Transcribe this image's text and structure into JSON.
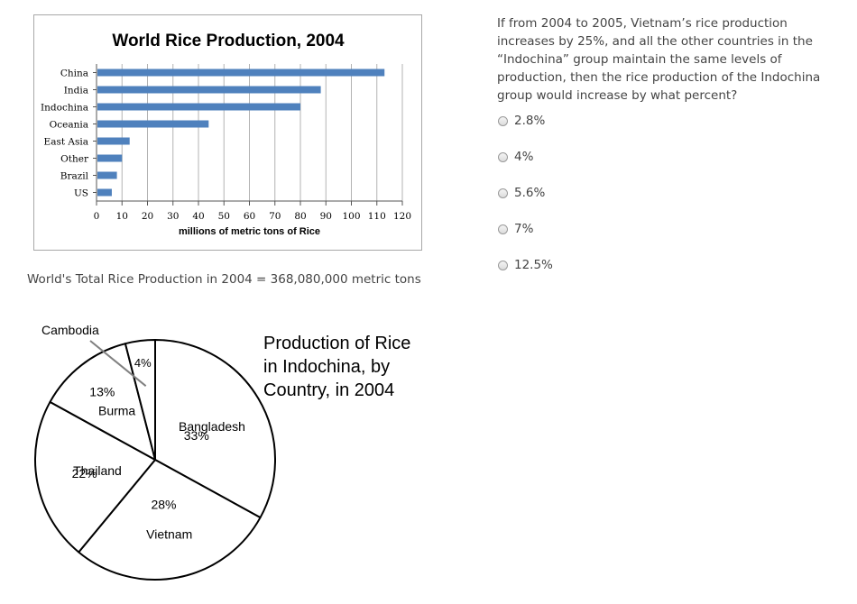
{
  "chart_data": [
    {
      "type": "bar",
      "orientation": "horizontal",
      "title": "World Rice Production, 2004",
      "categories": [
        "China",
        "India",
        "Indochina",
        "Oceania",
        "East Asia",
        "Other",
        "Brazil",
        "US"
      ],
      "values": [
        113,
        88,
        80,
        44,
        13,
        10,
        8,
        6
      ],
      "xlabel": "millions  of metric tons of Rice",
      "xlim": [
        0,
        120
      ],
      "xticks": [
        "0",
        "10",
        "20",
        "30",
        "40",
        "50",
        "60",
        "70",
        "80",
        "90",
        "100",
        "110",
        "120"
      ],
      "grid": "vertical",
      "bar_color": "#4f81bd"
    },
    {
      "type": "pie",
      "title": "Production of Rice in Indochina, by Country, in 2004",
      "slices": [
        {
          "label": "Bangladesh",
          "percent_label": "33%",
          "value": 33
        },
        {
          "label": "Vietnam",
          "percent_label": "28%",
          "value": 28
        },
        {
          "label": "Thailand",
          "percent_label": "22%",
          "value": 22
        },
        {
          "label": "Burma",
          "percent_label": "13%",
          "value": 13
        },
        {
          "label": "Cambodia",
          "percent_label": "4%",
          "value": 4
        }
      ],
      "fill": "#ffffff",
      "stroke": "#000000"
    }
  ],
  "total_text": "World's Total Rice Production in 2004 = 368,080,000 metric tons",
  "question": "If from 2004 to 2005, Vietnam’s rice production increases by 25%, and all the other countries in the “Indochina” group maintain the same levels of production, then the rice production of the Indochina group would increase by what percent?",
  "options": [
    "2.8%",
    "4%",
    "5.6%",
    "7%",
    "12.5%"
  ]
}
